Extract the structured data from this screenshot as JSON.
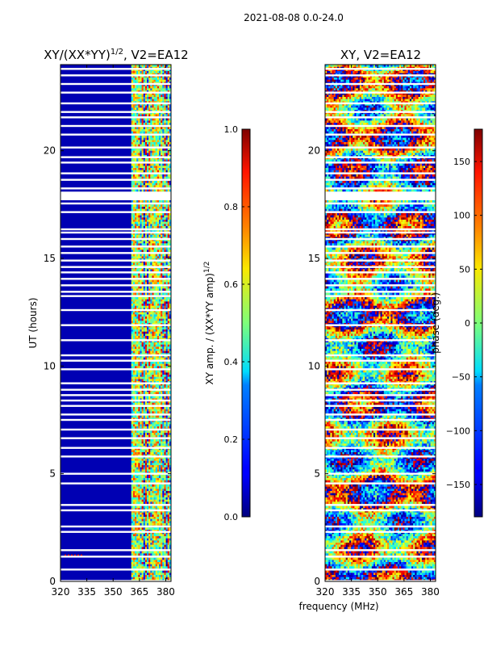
{
  "figure": {
    "suptitle": "2021-08-08 0.0-24.0",
    "xlabel_shared": "frequency (MHz)"
  },
  "chart_data": [
    {
      "type": "heatmap",
      "id": "amp",
      "title_main": "XY/(XX*YY)",
      "title_exp": "1/2",
      "title_suffix": ", V2=EA12",
      "ylabel": "UT (hours)",
      "xlim": [
        320,
        383
      ],
      "ylim": [
        0,
        24
      ],
      "xticks": [
        320,
        335,
        350,
        365,
        380
      ],
      "yticks": [
        0,
        5,
        10,
        15,
        20
      ],
      "colorbar": {
        "label_main": "XY amp. / (XX*YY amp)",
        "label_exp": "1/2",
        "range": [
          0.0,
          1.0
        ],
        "ticks": [
          "0.0",
          "0.2",
          "0.4",
          "0.6",
          "0.8",
          "1.0"
        ],
        "tick_values": [
          0.0,
          0.2,
          0.4,
          0.6,
          0.8,
          1.0
        ]
      },
      "description_regions": [
        {
          "freq": [
            320,
            361
          ],
          "value": 0.05
        },
        {
          "freq": [
            361,
            383
          ],
          "value": 0.45
        }
      ]
    },
    {
      "type": "heatmap",
      "id": "phase",
      "title": "XY, V2=EA12",
      "ylabel": "",
      "xlim": [
        320,
        383
      ],
      "ylim": [
        0,
        24
      ],
      "xticks": [
        320,
        335,
        350,
        365,
        380
      ],
      "yticks": [
        0,
        5,
        10,
        15,
        20
      ],
      "colorbar": {
        "label": "phase (deg.)",
        "range": [
          -180,
          180
        ],
        "ticks": [
          "150",
          "100",
          "50",
          "0",
          "−50",
          "−100",
          "−150"
        ],
        "tick_values": [
          150,
          100,
          50,
          0,
          -50,
          -100,
          -150
        ]
      }
    }
  ],
  "flagged_hours": [
    0.02,
    0.55,
    1.15,
    1.45,
    2.3,
    2.55,
    3.3,
    3.55,
    4.55,
    5.0,
    5.8,
    6.2,
    6.65,
    7.05,
    7.5,
    7.75,
    8.15,
    8.4,
    8.65,
    8.9,
    9.2,
    9.85,
    10.25,
    10.5,
    11.2,
    11.9,
    12.6,
    13.25,
    13.45,
    13.75,
    14.05,
    14.35,
    14.6,
    14.9,
    15.25,
    15.55,
    15.9,
    16.2,
    16.35,
    17.15,
    17.55,
    17.8,
    17.95,
    18.05,
    18.25,
    18.65,
    18.95,
    19.45,
    19.7,
    20.15,
    20.75,
    21.15,
    21.55,
    21.8,
    22.2,
    22.7,
    23.1,
    23.5,
    23.8
  ]
}
